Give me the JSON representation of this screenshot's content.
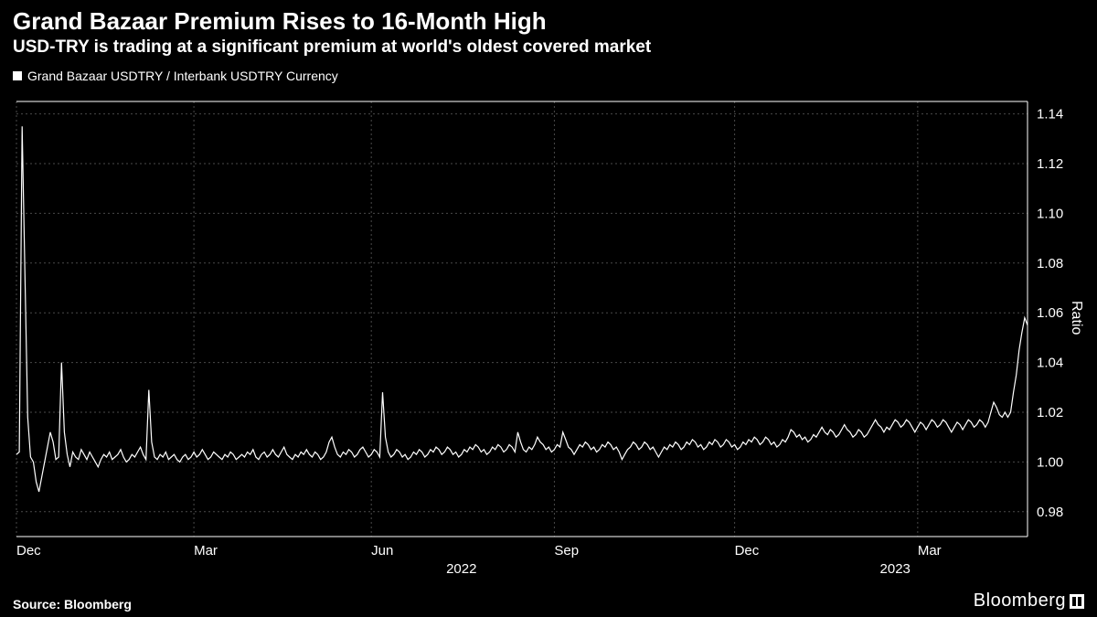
{
  "header": {
    "title": "Grand Bazaar Premium Rises to 16-Month High",
    "subtitle": "USD-TRY is trading at a significant premium at world's oldest covered market"
  },
  "legend": {
    "series_label": "Grand Bazaar USDTRY / Interbank USDTRY Currency"
  },
  "chart": {
    "type": "line",
    "background_color": "#000000",
    "line_color": "#ffffff",
    "line_width": 1.2,
    "grid_color": "#4a4a4a",
    "grid_dash": "2,3",
    "border_color": "#ffffff",
    "ylim": [
      0.97,
      1.145
    ],
    "yticks": [
      0.98,
      1.0,
      1.02,
      1.04,
      1.06,
      1.08,
      1.1,
      1.12,
      1.14
    ],
    "ytick_labels": [
      "0.98",
      "1.00",
      "1.02",
      "1.04",
      "1.06",
      "1.08",
      "1.10",
      "1.12",
      "1.14"
    ],
    "y_axis_title": "Ratio",
    "y_side": "right",
    "x_month_ticks": [
      {
        "x": 0,
        "label": "Dec"
      },
      {
        "x": 63,
        "label": "Mar"
      },
      {
        "x": 126,
        "label": "Jun"
      },
      {
        "x": 191,
        "label": "Sep"
      },
      {
        "x": 255,
        "label": "Dec"
      },
      {
        "x": 320,
        "label": "Mar"
      }
    ],
    "x_year_ticks": [
      {
        "x": 158,
        "label": "2022"
      },
      {
        "x": 312,
        "label": "2023"
      }
    ],
    "x_count": 360,
    "label_fontsize": 15,
    "series": [
      1.003,
      1.004,
      1.135,
      1.077,
      1.018,
      1.002,
      1.0,
      0.992,
      0.988,
      0.994,
      1.0,
      1.006,
      1.012,
      1.008,
      1.001,
      1.002,
      1.04,
      1.012,
      1.003,
      0.998,
      1.004,
      1.002,
      1.001,
      1.005,
      1.003,
      1.001,
      1.004,
      1.002,
      1.0,
      0.998,
      1.001,
      1.003,
      1.002,
      1.004,
      1.001,
      1.002,
      1.003,
      1.005,
      1.002,
      1.0,
      1.001,
      1.003,
      1.002,
      1.004,
      1.006,
      1.003,
      1.001,
      1.029,
      1.008,
      1.002,
      1.001,
      1.003,
      1.002,
      1.004,
      1.001,
      1.002,
      1.003,
      1.001,
      1.0,
      1.002,
      1.003,
      1.001,
      1.002,
      1.004,
      1.002,
      1.003,
      1.005,
      1.003,
      1.001,
      1.002,
      1.004,
      1.003,
      1.002,
      1.001,
      1.003,
      1.002,
      1.004,
      1.003,
      1.001,
      1.002,
      1.003,
      1.002,
      1.004,
      1.003,
      1.005,
      1.002,
      1.001,
      1.003,
      1.004,
      1.002,
      1.003,
      1.005,
      1.003,
      1.002,
      1.004,
      1.006,
      1.003,
      1.002,
      1.001,
      1.003,
      1.002,
      1.004,
      1.003,
      1.005,
      1.003,
      1.002,
      1.004,
      1.003,
      1.001,
      1.002,
      1.004,
      1.008,
      1.01,
      1.006,
      1.003,
      1.002,
      1.004,
      1.003,
      1.005,
      1.004,
      1.002,
      1.003,
      1.005,
      1.006,
      1.004,
      1.002,
      1.003,
      1.005,
      1.004,
      1.002,
      1.028,
      1.01,
      1.004,
      1.002,
      1.003,
      1.005,
      1.004,
      1.002,
      1.003,
      1.001,
      1.002,
      1.004,
      1.003,
      1.005,
      1.004,
      1.002,
      1.003,
      1.005,
      1.004,
      1.006,
      1.005,
      1.003,
      1.004,
      1.006,
      1.005,
      1.003,
      1.004,
      1.002,
      1.003,
      1.005,
      1.004,
      1.006,
      1.005,
      1.007,
      1.006,
      1.004,
      1.005,
      1.003,
      1.004,
      1.006,
      1.005,
      1.007,
      1.006,
      1.004,
      1.005,
      1.007,
      1.006,
      1.004,
      1.012,
      1.008,
      1.005,
      1.004,
      1.006,
      1.005,
      1.007,
      1.01,
      1.008,
      1.007,
      1.005,
      1.006,
      1.004,
      1.005,
      1.007,
      1.006,
      1.012,
      1.009,
      1.006,
      1.005,
      1.003,
      1.005,
      1.007,
      1.006,
      1.008,
      1.007,
      1.005,
      1.006,
      1.004,
      1.005,
      1.007,
      1.006,
      1.008,
      1.007,
      1.005,
      1.006,
      1.004,
      1.001,
      1.003,
      1.005,
      1.006,
      1.008,
      1.007,
      1.005,
      1.006,
      1.008,
      1.007,
      1.005,
      1.006,
      1.004,
      1.002,
      1.004,
      1.006,
      1.005,
      1.007,
      1.006,
      1.008,
      1.007,
      1.005,
      1.006,
      1.008,
      1.007,
      1.009,
      1.008,
      1.006,
      1.007,
      1.005,
      1.006,
      1.008,
      1.007,
      1.009,
      1.008,
      1.006,
      1.007,
      1.009,
      1.008,
      1.006,
      1.007,
      1.005,
      1.006,
      1.008,
      1.007,
      1.009,
      1.008,
      1.01,
      1.009,
      1.007,
      1.008,
      1.01,
      1.009,
      1.007,
      1.008,
      1.006,
      1.007,
      1.009,
      1.008,
      1.01,
      1.013,
      1.012,
      1.01,
      1.011,
      1.009,
      1.01,
      1.008,
      1.009,
      1.011,
      1.01,
      1.012,
      1.014,
      1.012,
      1.011,
      1.013,
      1.012,
      1.01,
      1.011,
      1.013,
      1.015,
      1.013,
      1.012,
      1.01,
      1.011,
      1.013,
      1.012,
      1.01,
      1.011,
      1.013,
      1.015,
      1.017,
      1.015,
      1.014,
      1.012,
      1.014,
      1.013,
      1.015,
      1.017,
      1.016,
      1.014,
      1.015,
      1.017,
      1.016,
      1.014,
      1.012,
      1.014,
      1.016,
      1.015,
      1.013,
      1.015,
      1.017,
      1.016,
      1.014,
      1.015,
      1.017,
      1.016,
      1.014,
      1.012,
      1.014,
      1.016,
      1.015,
      1.013,
      1.015,
      1.017,
      1.016,
      1.014,
      1.015,
      1.017,
      1.016,
      1.014,
      1.016,
      1.02,
      1.024,
      1.022,
      1.019,
      1.018,
      1.02,
      1.018,
      1.02,
      1.028,
      1.035,
      1.045,
      1.052,
      1.058,
      1.055
    ]
  },
  "footer": {
    "source": "Source: Bloomberg",
    "brand": "Bloomberg"
  }
}
